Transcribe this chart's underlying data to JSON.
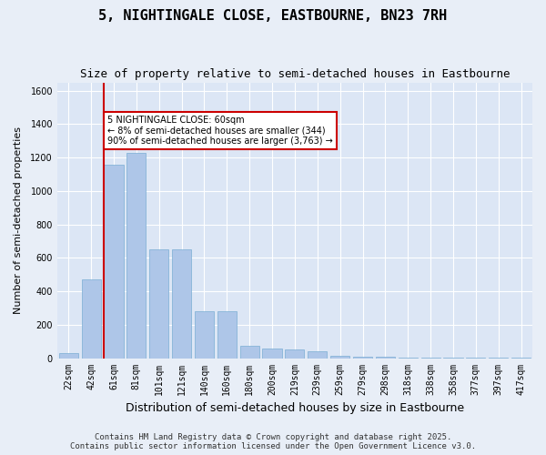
{
  "title": "5, NIGHTINGALE CLOSE, EASTBOURNE, BN23 7RH",
  "subtitle": "Size of property relative to semi-detached houses in Eastbourne",
  "xlabel": "Distribution of semi-detached houses by size in Eastbourne",
  "ylabel": "Number of semi-detached properties",
  "categories": [
    "22sqm",
    "42sqm",
    "61sqm",
    "81sqm",
    "101sqm",
    "121sqm",
    "140sqm",
    "160sqm",
    "180sqm",
    "200sqm",
    "219sqm",
    "239sqm",
    "259sqm",
    "279sqm",
    "298sqm",
    "318sqm",
    "338sqm",
    "358sqm",
    "377sqm",
    "397sqm",
    "417sqm"
  ],
  "values": [
    30,
    470,
    1160,
    1230,
    650,
    650,
    280,
    280,
    75,
    55,
    50,
    40,
    15,
    10,
    8,
    5,
    4,
    3,
    2,
    1,
    1
  ],
  "bar_color": "#aec6e8",
  "bar_edge_color": "#7aadd4",
  "highlight_index": 2,
  "highlight_line_color": "#cc0000",
  "annotation_text": "5 NIGHTINGALE CLOSE: 60sqm\n← 8% of semi-detached houses are smaller (344)\n90% of semi-detached houses are larger (3,763) →",
  "annotation_box_edge_color": "#cc0000",
  "ylim": [
    0,
    1650
  ],
  "yticks": [
    0,
    200,
    400,
    600,
    800,
    1000,
    1200,
    1400,
    1600
  ],
  "background_color": "#e8eef7",
  "plot_background_color": "#dce6f5",
  "grid_color": "#ffffff",
  "footer_line1": "Contains HM Land Registry data © Crown copyright and database right 2025.",
  "footer_line2": "Contains public sector information licensed under the Open Government Licence v3.0.",
  "title_fontsize": 11,
  "subtitle_fontsize": 9,
  "xlabel_fontsize": 9,
  "ylabel_fontsize": 8,
  "tick_fontsize": 7,
  "footer_fontsize": 6.5
}
